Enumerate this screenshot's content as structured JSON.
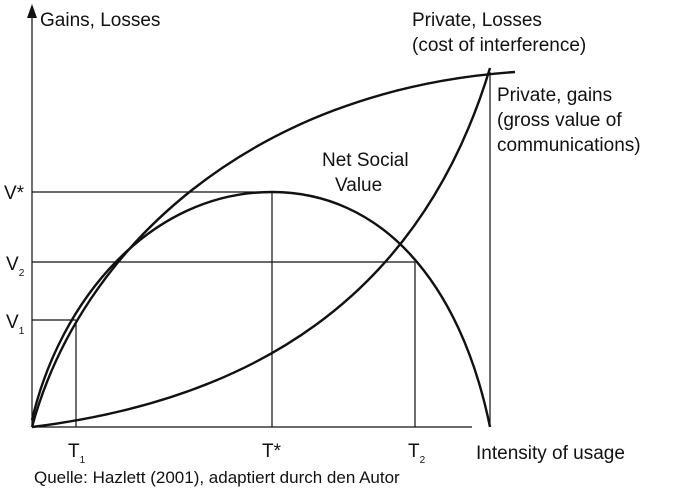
{
  "axis": {
    "y_label": "Gains, Losses",
    "x_label": "Intensity of usage"
  },
  "curves": {
    "losses": [
      "Private, Losses",
      "(cost of interference)"
    ],
    "gains": [
      "Private, gains",
      "(gross value of",
      "communications)"
    ],
    "net": [
      "Net Social",
      "Value"
    ]
  },
  "y_labels": [
    {
      "main": "V*"
    },
    {
      "main": "V",
      "sub": "2"
    },
    {
      "main": "V",
      "sub": "1"
    }
  ],
  "x_labels": [
    {
      "main": "T",
      "sub": "1"
    },
    {
      "main": "T*"
    },
    {
      "main": "T",
      "sub": "2"
    }
  ],
  "source": "Quelle: Hazlett (2001), adaptiert durch den Autor"
}
